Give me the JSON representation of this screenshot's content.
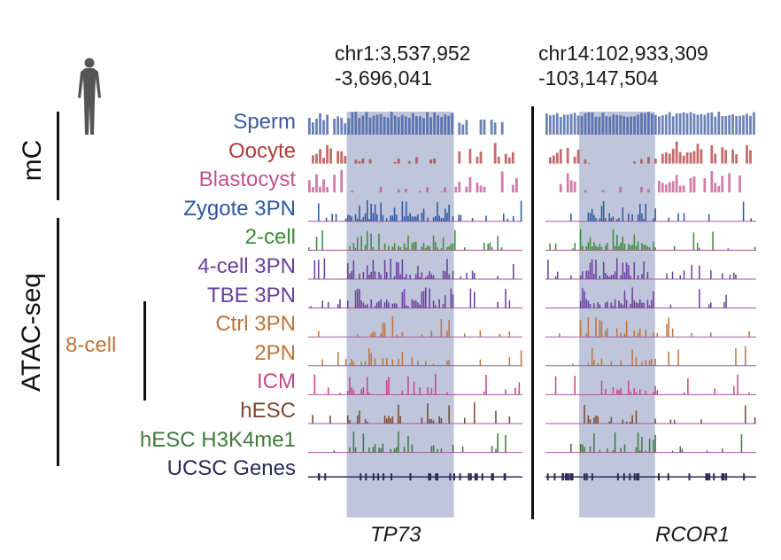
{
  "regions": [
    {
      "id": "left",
      "coord_line1": "chr1:3,537,952",
      "coord_line2": "-3,696,041",
      "gene": "TP73",
      "highlight": [
        0.18,
        0.68
      ]
    },
    {
      "id": "right",
      "coord_line1": "chr14:102,933,309",
      "coord_line2": "-103,147,504",
      "gene": "RCOR1",
      "highlight": [
        0.16,
        0.52
      ]
    }
  ],
  "groups": {
    "mc": "mC",
    "atac": "ATAC-seq",
    "eight_cell": "8-cell"
  },
  "icons": {
    "organism": "human-figure-icon"
  },
  "highlight_color": "#b8c0d8",
  "tracks": [
    {
      "label": "Sperm",
      "color": "#3b5aa0",
      "kind": "methyl"
    },
    {
      "label": "Oocyte",
      "color": "#b03a3a",
      "kind": "methyl"
    },
    {
      "label": "Blastocyst",
      "color": "#c2508f",
      "kind": "methyl"
    },
    {
      "label": "Zygote 3PN",
      "color": "#2e56a0",
      "kind": "atac"
    },
    {
      "label": "2-cell",
      "color": "#3e8a3e",
      "kind": "atac"
    },
    {
      "label": "4-cell 3PN",
      "color": "#6a3f9a",
      "kind": "atac"
    },
    {
      "label": "TBE 3PN",
      "color": "#6a3f9a",
      "kind": "atac"
    },
    {
      "label": "Ctrl 3PN",
      "color": "#c0733a",
      "kind": "atac"
    },
    {
      "label": "2PN",
      "color": "#c0733a",
      "kind": "atac"
    },
    {
      "label": "ICM",
      "color": "#c8468a",
      "kind": "atac"
    },
    {
      "label": "hESC",
      "color": "#7a4a2e",
      "kind": "atac"
    },
    {
      "label": "hESC H3K4me1",
      "color": "#3e7a3e",
      "kind": "atac"
    },
    {
      "label": "UCSC Genes",
      "color": "#2a2a55",
      "kind": "genes"
    }
  ]
}
